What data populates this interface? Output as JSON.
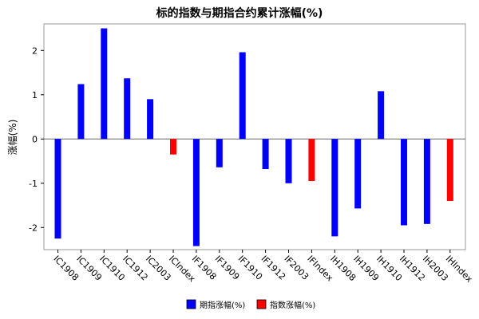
{
  "chart_data": {
    "type": "bar",
    "title": "标的指数与期指合约累计涨幅(%)",
    "xlabel": "",
    "ylabel": "涨幅(%)",
    "ylim": [
      -2.5,
      2.6
    ],
    "yticks": [
      -2,
      -1,
      0,
      1,
      2
    ],
    "grid": false,
    "legend_position": "bottom",
    "categories": [
      "IC1908",
      "IC1909",
      "IC1910",
      "IC1912",
      "IC2003",
      "ICIndex",
      "IF1908",
      "IF1909",
      "IF1910",
      "IF1912",
      "IF2003",
      "IFIndex",
      "IH1908",
      "IH1909",
      "IH1910",
      "IH1912",
      "IH2003",
      "IHIndex"
    ],
    "values": [
      -2.25,
      1.24,
      2.5,
      1.37,
      0.9,
      -0.35,
      -2.42,
      -0.64,
      1.96,
      -0.68,
      -1.0,
      -0.95,
      -2.2,
      -1.57,
      1.08,
      -1.95,
      -1.92,
      -1.4
    ],
    "series_type": [
      "futures",
      "futures",
      "futures",
      "futures",
      "futures",
      "index",
      "futures",
      "futures",
      "futures",
      "futures",
      "futures",
      "index",
      "futures",
      "futures",
      "futures",
      "futures",
      "futures",
      "index"
    ],
    "legend": [
      {
        "key": "futures",
        "name": "期指涨幅(%)",
        "color": "#0000ff"
      },
      {
        "key": "index",
        "name": "指数涨幅(%)",
        "color": "#ff0000"
      }
    ]
  }
}
